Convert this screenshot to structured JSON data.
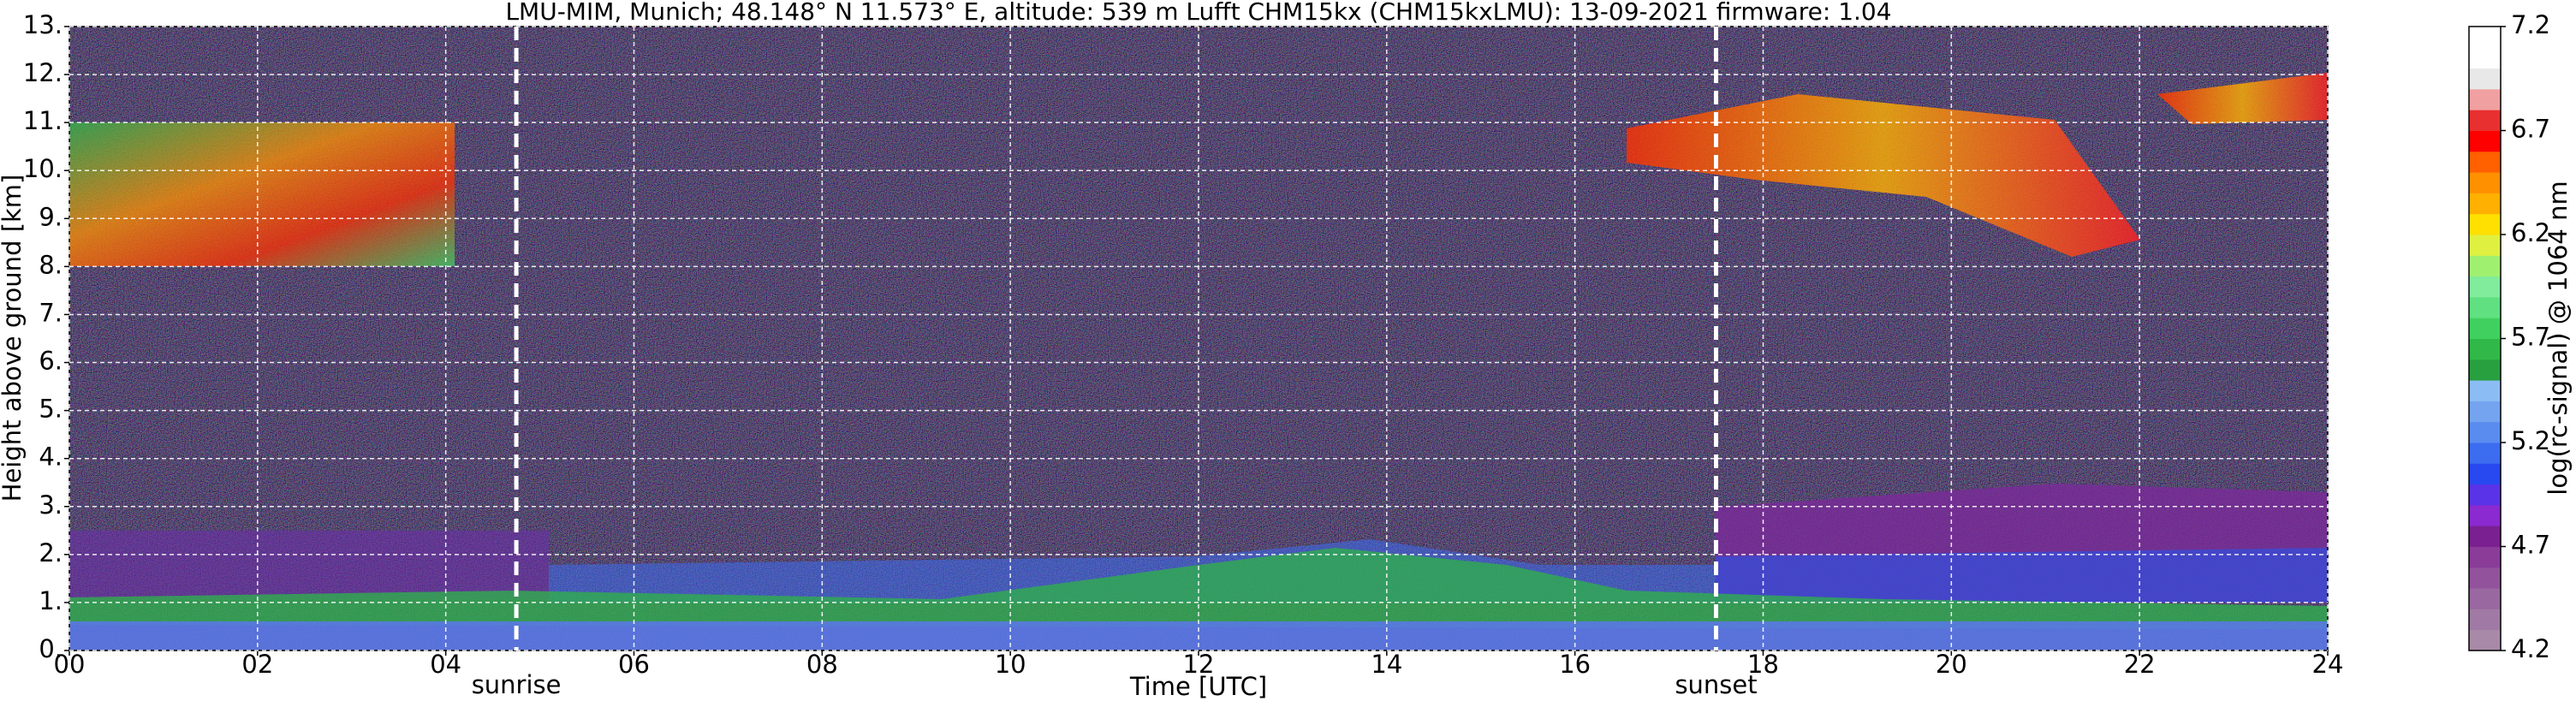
{
  "chart_data": {
    "type": "heatmap",
    "title": "LMU-MIM, Munich; 48.148° N 11.573° E, altitude: 539 m    Lufft CHM15kx (CHM15kxLMU): 13-09-2021    firmware: 1.04",
    "xlabel": "Time [UTC]",
    "ylabel": "Height above ground [km]",
    "xlim": [
      0,
      24
    ],
    "xticks": [
      {
        "value": 0,
        "label": "00"
      },
      {
        "value": 2,
        "label": "02"
      },
      {
        "value": 4,
        "label": "04"
      },
      {
        "value": 6,
        "label": "06"
      },
      {
        "value": 8,
        "label": "08"
      },
      10,
      12,
      14,
      16,
      18,
      20,
      22,
      24
    ],
    "ylim": [
      0,
      13
    ],
    "yticks": [
      {
        "value": 0,
        "label": "0."
      },
      {
        "value": 1,
        "label": "1."
      },
      {
        "value": 2,
        "label": "2."
      },
      {
        "value": 3,
        "label": "3."
      },
      {
        "value": 4,
        "label": "4."
      },
      {
        "value": 5,
        "label": "5."
      },
      {
        "value": 6,
        "label": "6."
      },
      {
        "value": 7,
        "label": "7."
      },
      {
        "value": 8,
        "label": "8."
      },
      {
        "value": 9,
        "label": "9."
      },
      {
        "value": 10,
        "label": "10."
      },
      {
        "value": 11,
        "label": "11."
      },
      {
        "value": 12,
        "label": "12."
      },
      {
        "value": 13,
        "label": "13."
      }
    ],
    "grid": true,
    "annotations": [
      {
        "x": 4.75,
        "text": "sunrise"
      },
      {
        "x": 17.5,
        "text": "sunset"
      }
    ],
    "colorbar": {
      "label": "log(rc-signal) @ 1064 nm",
      "lim": [
        4.2,
        7.2
      ],
      "ticks": [
        4.2,
        4.7,
        5.2,
        5.7,
        6.2,
        6.7,
        7.2
      ],
      "colors": [
        "#a88aa8",
        "#a07aa4",
        "#9a68a0",
        "#93529c",
        "#8a3c98",
        "#7a2090",
        "#8a2ad0",
        "#5a32e8",
        "#2848f0",
        "#3c6cf0",
        "#5a8cf0",
        "#74a4f0",
        "#8cbcf4",
        "#28a040",
        "#30b848",
        "#40d060",
        "#60e080",
        "#80ec9c",
        "#a0f070",
        "#e0f040",
        "#ffe000",
        "#ffb000",
        "#ff9000",
        "#ff6000",
        "#ff0000",
        "#e83030",
        "#f0a0a0",
        "#e8e8e8",
        "#ffffff",
        "#ffffff"
      ]
    }
  }
}
